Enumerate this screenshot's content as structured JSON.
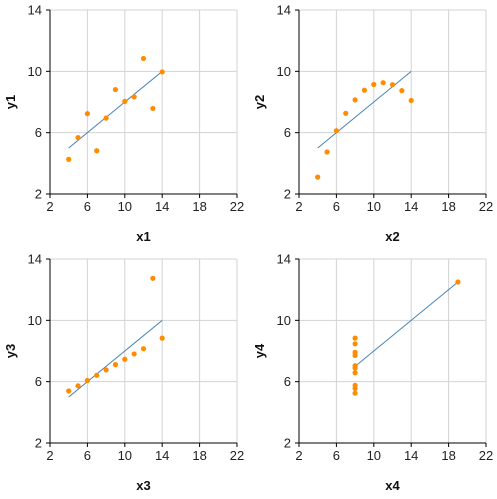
{
  "chart_data": [
    {
      "type": "scatter",
      "title": "",
      "xlabel": "x1",
      "ylabel": "y1",
      "xlim": [
        2,
        22
      ],
      "ylim": [
        2,
        14
      ],
      "xticks": [
        2,
        6,
        10,
        14,
        18,
        22
      ],
      "yticks": [
        2,
        6,
        10,
        14
      ],
      "grid": true,
      "points": [
        [
          10,
          8.04
        ],
        [
          8,
          6.95
        ],
        [
          13,
          7.58
        ],
        [
          9,
          8.81
        ],
        [
          11,
          8.33
        ],
        [
          14,
          9.96
        ],
        [
          6,
          7.24
        ],
        [
          4,
          4.26
        ],
        [
          12,
          10.84
        ],
        [
          7,
          4.82
        ],
        [
          5,
          5.68
        ]
      ],
      "fit_line": [
        [
          4,
          5.0
        ],
        [
          14,
          10.0
        ]
      ],
      "point_color": "#ff8c00",
      "line_color": "#4682b4"
    },
    {
      "type": "scatter",
      "title": "",
      "xlabel": "x2",
      "ylabel": "y2",
      "xlim": [
        2,
        22
      ],
      "ylim": [
        2,
        14
      ],
      "xticks": [
        2,
        6,
        10,
        14,
        18,
        22
      ],
      "yticks": [
        2,
        6,
        10,
        14
      ],
      "grid": true,
      "points": [
        [
          10,
          9.14
        ],
        [
          8,
          8.14
        ],
        [
          13,
          8.74
        ],
        [
          9,
          8.77
        ],
        [
          11,
          9.26
        ],
        [
          14,
          8.1
        ],
        [
          6,
          6.13
        ],
        [
          4,
          3.1
        ],
        [
          12,
          9.13
        ],
        [
          7,
          7.26
        ],
        [
          5,
          4.74
        ]
      ],
      "fit_line": [
        [
          4,
          5.0
        ],
        [
          14,
          10.0
        ]
      ],
      "point_color": "#ff8c00",
      "line_color": "#4682b4"
    },
    {
      "type": "scatter",
      "title": "",
      "xlabel": "x3",
      "ylabel": "y3",
      "xlim": [
        2,
        22
      ],
      "ylim": [
        2,
        14
      ],
      "xticks": [
        2,
        6,
        10,
        14,
        18,
        22
      ],
      "yticks": [
        2,
        6,
        10,
        14
      ],
      "grid": true,
      "points": [
        [
          10,
          7.46
        ],
        [
          8,
          6.77
        ],
        [
          13,
          12.74
        ],
        [
          9,
          7.11
        ],
        [
          11,
          7.81
        ],
        [
          14,
          8.84
        ],
        [
          6,
          6.08
        ],
        [
          4,
          5.39
        ],
        [
          12,
          8.15
        ],
        [
          7,
          6.42
        ],
        [
          5,
          5.73
        ]
      ],
      "fit_line": [
        [
          4,
          5.0
        ],
        [
          14,
          10.0
        ]
      ],
      "point_color": "#ff8c00",
      "line_color": "#4682b4"
    },
    {
      "type": "scatter",
      "title": "",
      "xlabel": "x4",
      "ylabel": "y4",
      "xlim": [
        2,
        22
      ],
      "ylim": [
        2,
        14
      ],
      "xticks": [
        2,
        6,
        10,
        14,
        18,
        22
      ],
      "yticks": [
        2,
        6,
        10,
        14
      ],
      "grid": true,
      "points": [
        [
          8,
          6.58
        ],
        [
          8,
          5.76
        ],
        [
          8,
          7.71
        ],
        [
          8,
          8.84
        ],
        [
          8,
          8.47
        ],
        [
          8,
          7.04
        ],
        [
          8,
          5.25
        ],
        [
          19,
          12.5
        ],
        [
          8,
          5.56
        ],
        [
          8,
          7.91
        ],
        [
          8,
          6.89
        ]
      ],
      "fit_line": [
        [
          8,
          7.0
        ],
        [
          19,
          12.5
        ]
      ],
      "point_color": "#ff8c00",
      "line_color": "#4682b4"
    }
  ]
}
